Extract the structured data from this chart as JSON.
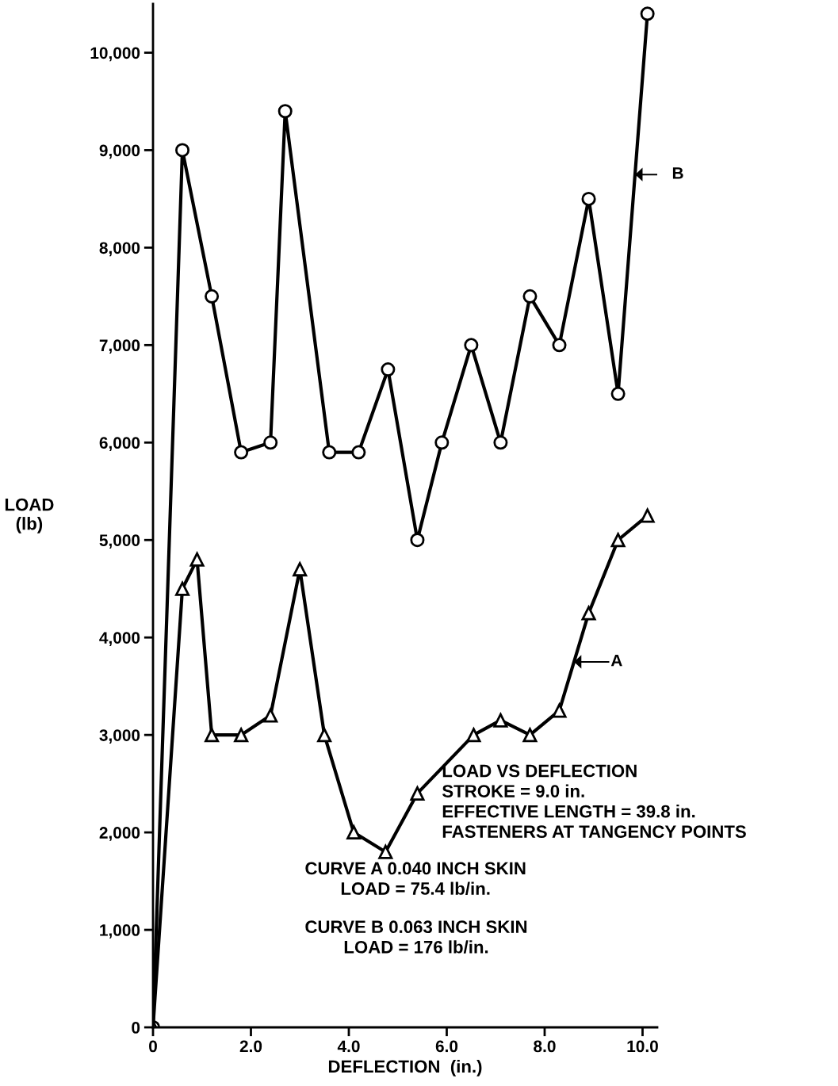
{
  "chart_data": {
    "type": "line",
    "xlabel": "DEFLECTION  (in.)",
    "ylabel": "LOAD\n(lb)",
    "xlim": [
      0,
      10.3
    ],
    "ylim": [
      0,
      10500
    ],
    "xticks": [
      0,
      {
        "value": 2,
        "label": "2.0"
      },
      {
        "value": 4,
        "label": "4.0"
      },
      {
        "value": 6,
        "label": "6.0"
      },
      {
        "value": 8,
        "label": "8.0"
      },
      {
        "value": 10,
        "label": "10.0"
      }
    ],
    "yticks": [
      0,
      {
        "value": 1000,
        "label": "1,000"
      },
      {
        "value": 2000,
        "label": "2,000"
      },
      {
        "value": 3000,
        "label": "3,000"
      },
      {
        "value": 4000,
        "label": "4,000"
      },
      {
        "value": 5000,
        "label": "5,000"
      },
      {
        "value": 6000,
        "label": "6,000"
      },
      {
        "value": 7000,
        "label": "7,000"
      },
      {
        "value": 8000,
        "label": "8,000"
      },
      {
        "value": 9000,
        "label": "9,000"
      },
      {
        "value": 10000,
        "label": "10,000"
      }
    ],
    "grid": false,
    "legend": false,
    "series": [
      {
        "color": "#000000",
        "marker": "circle",
        "x": [
          0,
          0.6,
          1.2,
          1.8,
          2.4,
          2.7,
          3.6,
          4.2,
          4.8,
          5.4,
          5.9,
          6.5,
          7.1,
          7.7,
          8.3,
          8.9,
          9.5,
          10.1
        ],
        "values": [
          0,
          9000,
          7500,
          5900,
          6000,
          9400,
          5900,
          5900,
          6750,
          5000,
          6000,
          7000,
          6000,
          7500,
          7000,
          8500,
          6500,
          10400
        ]
      },
      {
        "color": "#000000",
        "marker": "triangle",
        "x": [
          0,
          0.6,
          0.9,
          1.2,
          1.8,
          2.4,
          3.0,
          3.5,
          4.1,
          4.75,
          5.4,
          6.55,
          7.1,
          7.7,
          8.3,
          8.9,
          9.5,
          10.1
        ],
        "values": [
          0,
          4500,
          4800,
          3000,
          3000,
          3200,
          4700,
          3000,
          2000,
          1800,
          2400,
          3000,
          3150,
          3000,
          3250,
          4250,
          5000,
          5250
        ]
      }
    ],
    "annotations": [
      {
        "text": "B",
        "x": 9.85,
        "y": 8750
      },
      {
        "text": "A",
        "x": 8.6,
        "y": 3750
      },
      "LOAD VS DEFLECTION\nSTROKE = 9.0 in.\nEFFECTIVE LENGTH = 39.8 in.\nFASTENERS AT TANGENCY POINTS",
      "CURVE A 0.040 INCH SKIN\nLOAD = 75.4 lb/in.",
      "CURVE B 0.063 INCH SKIN\nLOAD = 176 lb/in."
    ]
  }
}
